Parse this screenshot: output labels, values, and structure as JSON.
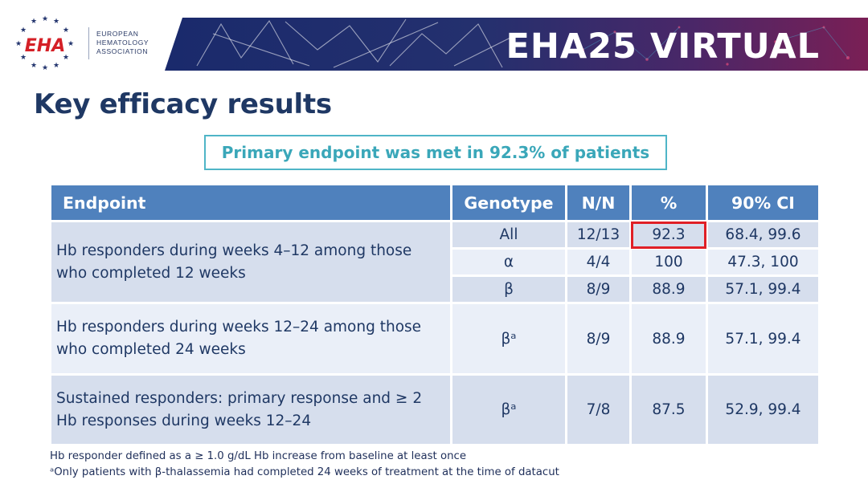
{
  "logo": {
    "mark": "EHA",
    "org_lines": [
      "EUROPEAN",
      "HEMATOLOGY",
      "ASSOCIATION"
    ]
  },
  "banner": {
    "title": "EHA25 VIRTUAL"
  },
  "slide": {
    "title": "Key efficacy results",
    "callout": "Primary endpoint was met in 92.3% of patients"
  },
  "table": {
    "headers": [
      "Endpoint",
      "Genotype",
      "N/N",
      "%",
      "90% CI"
    ],
    "groups": [
      {
        "endpoint_lines": [
          "Hb responders during weeks 4–12 among those",
          "who completed 12 weeks"
        ],
        "rows": [
          {
            "genotype": "All",
            "n": "12/13",
            "pct": "92.3",
            "ci": "68.4, 99.6"
          },
          {
            "genotype": "α",
            "n": "4/4",
            "pct": "100",
            "ci": "47.3, 100"
          },
          {
            "genotype": "β",
            "n": "8/9",
            "pct": "88.9",
            "ci": "57.1, 99.4"
          }
        ]
      },
      {
        "endpoint_lines": [
          "Hb responders during weeks 12–24 among those",
          "who completed 24 weeks"
        ],
        "rows": [
          {
            "genotype": "βᵃ",
            "n": "8/9",
            "pct": "88.9",
            "ci": "57.1, 99.4"
          }
        ]
      },
      {
        "endpoint_lines": [
          "Sustained responders: primary response and ≥ 2",
          "Hb responses during weeks 12–24"
        ],
        "rows": [
          {
            "genotype": "βᵃ",
            "n": "7/8",
            "pct": "87.5",
            "ci": "52.9, 99.4"
          }
        ]
      }
    ],
    "highlighted_value": "92.3"
  },
  "footnotes": [
    "Hb responder defined as a ≥ 1.0 g/dL Hb increase from baseline at least once",
    "ᵃOnly patients with β-thalassemia had completed 24 weeks of treatment at the time of datacut"
  ],
  "colors": {
    "title": "#1f3864",
    "header_fill": "#4f81bd",
    "row_fill": "#d6deed",
    "row_fill_alt": "#eaeff8",
    "callout": "#3aa7b9",
    "highlight": "#e01f26",
    "banner": "#1a2a6c"
  }
}
